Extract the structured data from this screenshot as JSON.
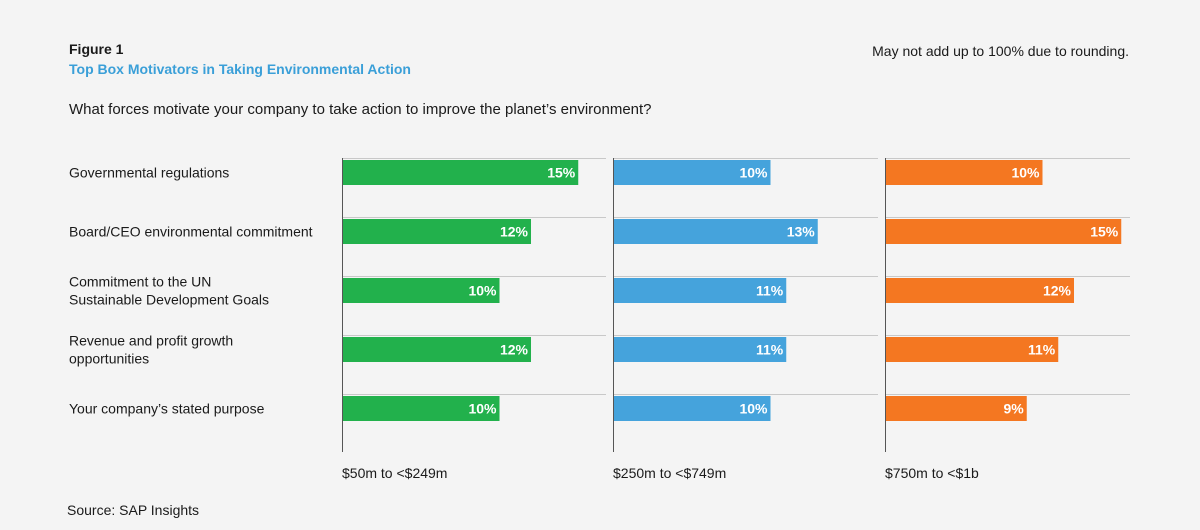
{
  "figure_label": "Figure 1",
  "title": "Top Box Motivators in Taking Environmental Action",
  "note": "May not add up to 100% due to rounding.",
  "question": "What forces motivate your company to take action to improve the planet’s environment?",
  "source": "Source: SAP Insights",
  "chart_data": {
    "type": "bar",
    "orientation": "horizontal",
    "categories": [
      [
        "Governmental regulations"
      ],
      [
        "Board/CEO environmental commitment"
      ],
      [
        "Commitment to the UN",
        "Sustainable Development Goals"
      ],
      [
        "Revenue and profit growth",
        "opportunities"
      ],
      [
        "Your company’s stated purpose"
      ]
    ],
    "unit": "%",
    "xlim": [
      0,
      17
    ],
    "series": [
      {
        "name": "$50m to <$249m",
        "color": "#22b14c",
        "values": [
          15,
          12,
          10,
          12,
          10
        ]
      },
      {
        "name": "$250m to <$749m",
        "color": "#45a3dc",
        "values": [
          10,
          13,
          11,
          11,
          10
        ]
      },
      {
        "name": "$750m to <$1b",
        "color": "#f47721",
        "values": [
          10,
          15,
          12,
          11,
          9
        ]
      }
    ]
  }
}
